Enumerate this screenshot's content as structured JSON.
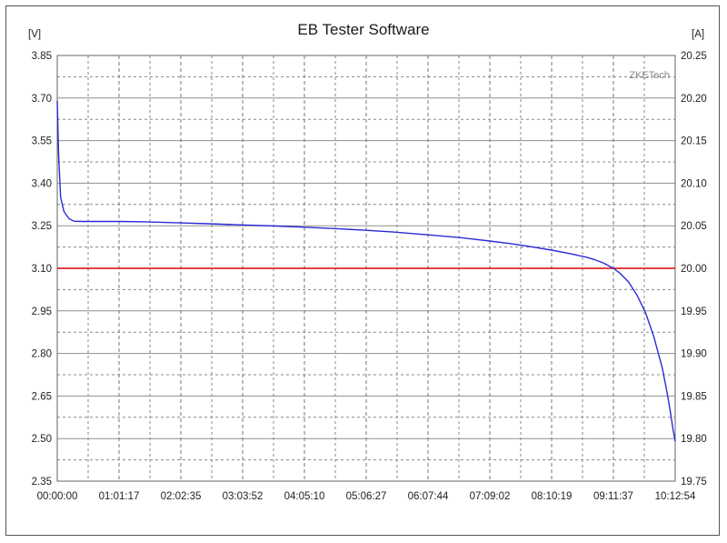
{
  "window": {
    "title": "EB Tester Software"
  },
  "watermark": "ZKETech",
  "chart_data": {
    "type": "line",
    "title": "EB Tester Software",
    "y_left": {
      "unit": "[V]",
      "ylim": [
        2.35,
        3.85
      ],
      "ticks": [
        "3.85",
        "3.70",
        "3.55",
        "3.40",
        "3.25",
        "3.10",
        "2.95",
        "2.80",
        "2.65",
        "2.50",
        "2.35"
      ]
    },
    "y_right": {
      "unit": "[A]",
      "ylim": [
        19.75,
        20.25
      ],
      "ticks": [
        "20.25",
        "20.20",
        "20.15",
        "20.10",
        "20.05",
        "20.00",
        "19.95",
        "19.90",
        "19.85",
        "19.80",
        "19.75"
      ]
    },
    "x_ticks": [
      "00:00:00",
      "01:01:17",
      "02:02:35",
      "03:03:52",
      "04:05:10",
      "05:06:27",
      "06:07:44",
      "07:09:02",
      "08:10:19",
      "09:11:37",
      "10:12:54"
    ],
    "x_range_seconds": [
      0,
      36774
    ],
    "grid": true,
    "series": [
      {
        "color": "#2b2bd6",
        "axis": "left",
        "x_seconds": [
          0,
          80,
          200,
          400,
          700,
          1000,
          1500,
          2000,
          3000,
          3677,
          5000,
          7355,
          9000,
          11032,
          13000,
          14710,
          16500,
          18387,
          20000,
          22064,
          24000,
          25742,
          27000,
          28000,
          29419,
          30500,
          31500,
          32000,
          32500,
          33097,
          33500,
          34000,
          34500,
          35000,
          35500,
          36000,
          36300,
          36500,
          36650,
          36774
        ],
        "values_v": [
          3.69,
          3.5,
          3.35,
          3.3,
          3.275,
          3.266,
          3.265,
          3.265,
          3.265,
          3.265,
          3.264,
          3.26,
          3.257,
          3.253,
          3.249,
          3.245,
          3.24,
          3.234,
          3.228,
          3.218,
          3.208,
          3.196,
          3.187,
          3.178,
          3.164,
          3.152,
          3.139,
          3.13,
          3.119,
          3.1,
          3.082,
          3.052,
          3.005,
          2.945,
          2.86,
          2.75,
          2.66,
          2.59,
          2.53,
          2.49
        ]
      },
      {
        "color": "#e00000",
        "axis": "left",
        "x_seconds": [
          0,
          36774
        ],
        "values_v": [
          3.1,
          3.1
        ]
      }
    ]
  }
}
